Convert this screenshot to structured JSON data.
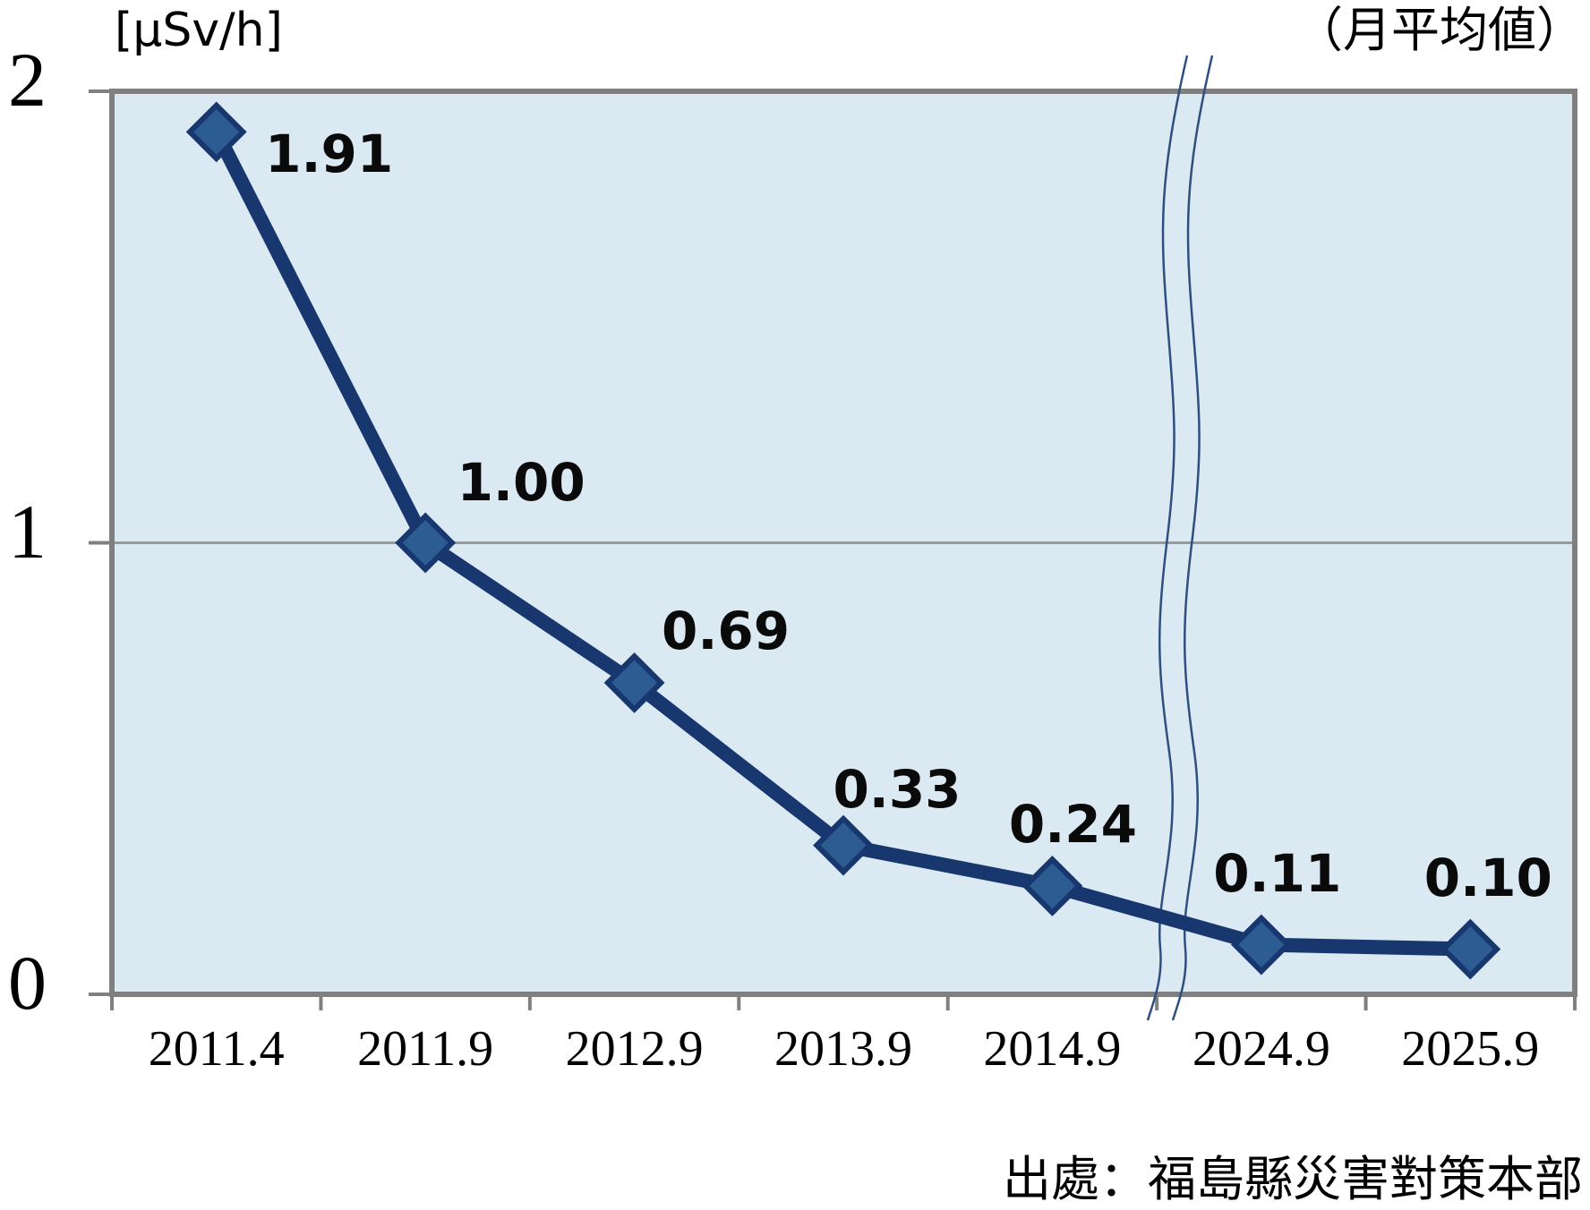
{
  "chart_data": {
    "type": "line",
    "unit_label": "[µSv/h]",
    "note": "（月平均値）",
    "source": "出處：福島縣災害對策本部",
    "categories": [
      "2011.4",
      "2011.9",
      "2012.9",
      "2013.9",
      "2014.9",
      "2024.9",
      "2025.9"
    ],
    "values": [
      1.91,
      1.0,
      0.69,
      0.33,
      0.24,
      0.11,
      0.1
    ],
    "value_labels": [
      "1.91",
      "1.00",
      "0.69",
      "0.33",
      "0.24",
      "0.11",
      "0.10"
    ],
    "ylim": [
      0,
      2
    ],
    "ytick_values": [
      2,
      1,
      0
    ],
    "ytick_labels": [
      "2",
      "1",
      "0"
    ],
    "grid": "horizontal gridline at y=1 only",
    "legend": "none",
    "axis_break": {
      "between": [
        "2014.9",
        "2024.9"
      ],
      "style": "double wavy line"
    },
    "colors": {
      "plot_background": "#dbeaf2",
      "line": "#17376e",
      "marker_fill": "#2d5c93",
      "marker_border": "#17376e",
      "axis_border": "#808080",
      "gridline": "#999999",
      "break_line": "#2f4f7f",
      "label_text": "#0a0a0a"
    }
  }
}
